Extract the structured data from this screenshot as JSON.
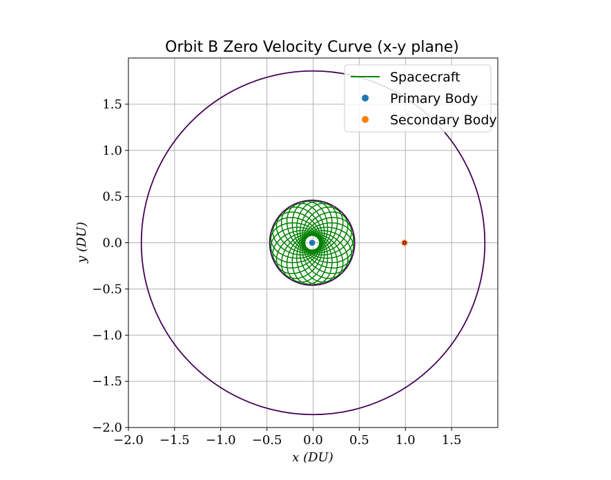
{
  "chart_data": {
    "type": "line",
    "title": "Orbit B Zero Velocity Curve (x-y plane)",
    "xlabel": "x (DU)",
    "ylabel": "y (DU)",
    "xlim": [
      -2.0,
      2.0
    ],
    "ylim": [
      -2.0,
      2.0
    ],
    "xticks": [
      -2.0,
      -1.5,
      -1.0,
      -0.5,
      0.0,
      0.5,
      1.0,
      1.5
    ],
    "yticks": [
      -2.0,
      -1.5,
      -1.0,
      -0.5,
      0.0,
      0.5,
      1.0,
      1.5
    ],
    "xtick_labels": [
      "−2.0",
      "−1.5",
      "−1.0",
      "−0.5",
      "0.0",
      "0.5",
      "1.0",
      "1.5"
    ],
    "ytick_labels": [
      "−2.0",
      "−1.5",
      "−1.0",
      "−0.5",
      "0.0",
      "0.5",
      "1.0",
      "1.5"
    ],
    "grid": true,
    "legend_position": "top-right",
    "legend": [
      {
        "label": "Spacecraft",
        "kind": "line",
        "color": "#008000"
      },
      {
        "label": "Primary Body",
        "kind": "marker",
        "color": "#1f77b4"
      },
      {
        "label": "Secondary Body",
        "kind": "marker",
        "color": "#ff7f0e"
      }
    ],
    "zero_velocity_curves": {
      "color": "#440154",
      "outer": {
        "center": [
          0.0,
          0.0
        ],
        "radius": 1.86
      },
      "inner": {
        "center": [
          -0.01,
          0.0
        ],
        "radius": 0.46
      },
      "secondary_lobe": {
        "center": [
          0.99,
          0.0
        ],
        "radius": 0.02
      }
    },
    "spacecraft": {
      "color": "#008000",
      "center": [
        -0.01,
        0.0
      ],
      "apoapsis": 0.45,
      "periapsis": 0.08,
      "loops": 24
    },
    "primary_body": {
      "x": -0.01,
      "y": 0.0,
      "color": "#1f77b4"
    },
    "secondary_body": {
      "x": 0.99,
      "y": 0.0,
      "color": "#ff7f0e"
    }
  }
}
